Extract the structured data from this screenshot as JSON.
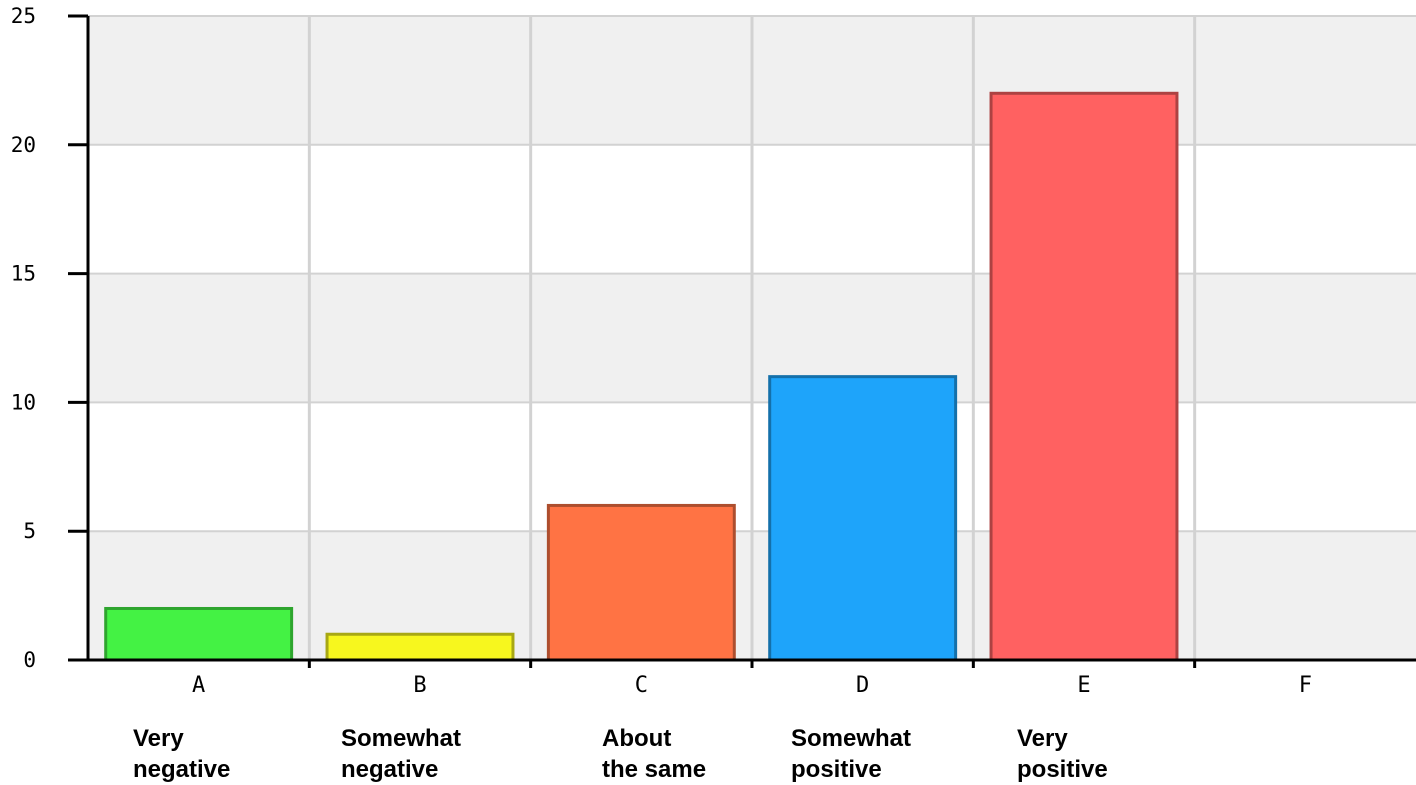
{
  "chart_data": {
    "type": "bar",
    "categories": [
      "A",
      "B",
      "C",
      "D",
      "E",
      "F"
    ],
    "values": [
      2,
      1,
      6,
      11,
      22,
      0
    ],
    "category_descriptions": [
      [
        "Very",
        "negative"
      ],
      [
        "Somewhat",
        "negative"
      ],
      [
        "About",
        "the same"
      ],
      [
        "Somewhat",
        "positive"
      ],
      [
        "Very",
        "positive"
      ]
    ],
    "colors": [
      "#44f244",
      "#f7f71e",
      "#ff7344",
      "#1ea4fa",
      "#ff6161",
      "#cccccc"
    ],
    "ylim": [
      0,
      25
    ],
    "yticks": [
      "0",
      "5",
      "10",
      "15",
      "20",
      "25"
    ],
    "grid": true,
    "title": "",
    "xlabel": "",
    "ylabel": ""
  }
}
